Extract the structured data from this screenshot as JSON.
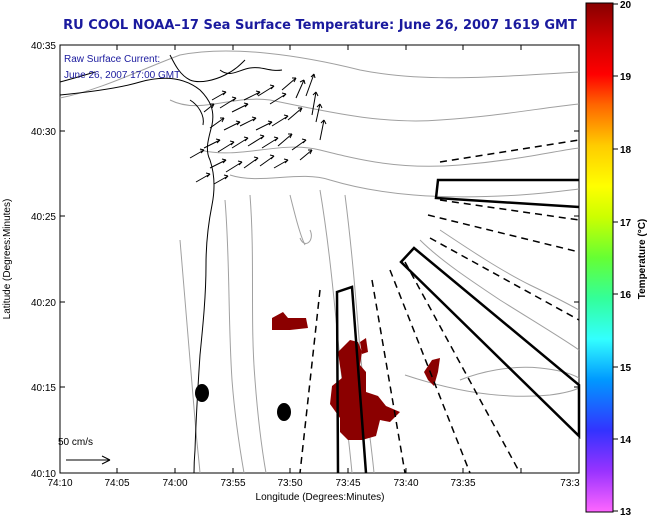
{
  "title": "RU COOL  NOAA–17  Sea Surface Temperature:  June 26, 2007 1619 GMT",
  "overlay": {
    "line1": "Raw Surface Current:",
    "line2": "June 26, 2007 17:00 GMT",
    "scale_label": "50 cm/s"
  },
  "axes": {
    "xlabel": "Longitude (Degrees:Minutes)",
    "ylabel": "Latitude (Degrees:Minutes)",
    "x_ticks": [
      "74:10",
      "74:05",
      "74:00",
      "73:55",
      "73:50",
      "73:45",
      "73:40",
      "73:35",
      "73:3"
    ],
    "y_ticks": [
      "40:35",
      "40:30",
      "40:25",
      "40:20",
      "40:15",
      "40:10"
    ]
  },
  "colorbar": {
    "label": "Temperature (°C)",
    "ticks": [
      "20",
      "19",
      "18",
      "17",
      "16",
      "15",
      "14",
      "13"
    ],
    "min": 13,
    "max": 20,
    "colors": [
      "#ff66ff",
      "#9933ff",
      "#3333ff",
      "#0099ff",
      "#33ffff",
      "#33ff99",
      "#66ff33",
      "#ccff00",
      "#ffff00",
      "#ffcc00",
      "#ff6600",
      "#ff0000",
      "#cc0000",
      "#880000"
    ]
  },
  "colors": {
    "title": "#1a1a9e",
    "sst_patch": "#8b0000",
    "contour": "#a0a0a0"
  }
}
